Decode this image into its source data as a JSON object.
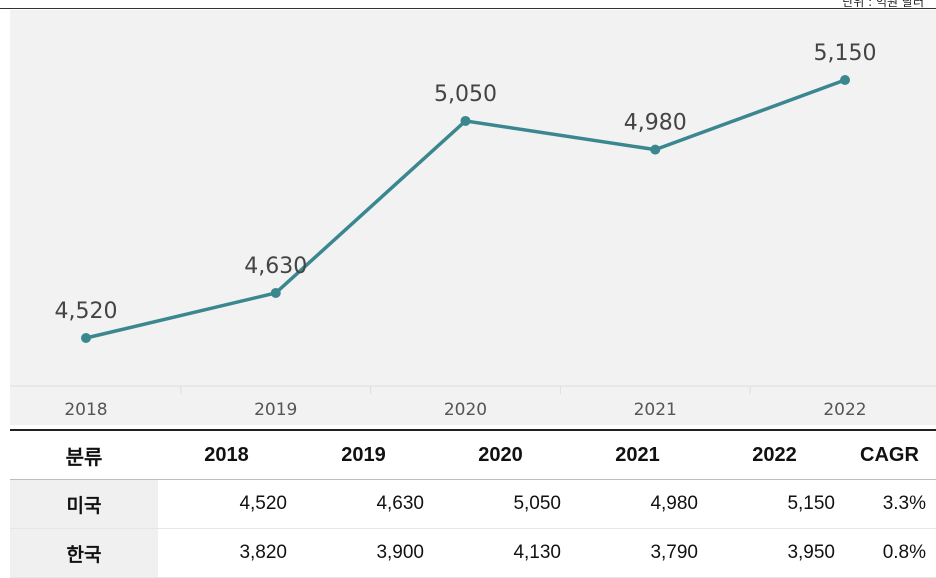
{
  "header": {
    "unit_label": "단위 : 억원 달러"
  },
  "chart_data": {
    "type": "line",
    "categories": [
      "2018",
      "2019",
      "2020",
      "2021",
      "2022"
    ],
    "series": [
      {
        "values": [
          4520,
          4630,
          5050,
          4980,
          5150
        ]
      }
    ],
    "data_labels": [
      "4,520",
      "4,630",
      "5,050",
      "4,980",
      "5,150"
    ],
    "ylim": [
      4400,
      5250
    ],
    "colors": {
      "line": "#3b8790",
      "background": "#f2f2f2",
      "grid": "#dddddd",
      "tick_text": "#555555",
      "label_text": "#444444"
    },
    "title": "",
    "xlabel": "",
    "ylabel": ""
  },
  "table": {
    "headers": [
      "분류",
      "2018",
      "2019",
      "2020",
      "2021",
      "2022",
      "CAGR"
    ],
    "rows": [
      {
        "label": "미국",
        "values": [
          "4,520",
          "4,630",
          "5,050",
          "4,980",
          "5,150"
        ],
        "cagr": "3.3%"
      },
      {
        "label": "한국",
        "values": [
          "3,820",
          "3,900",
          "4,130",
          "3,790",
          "3,950"
        ],
        "cagr": "0.8%"
      }
    ]
  }
}
